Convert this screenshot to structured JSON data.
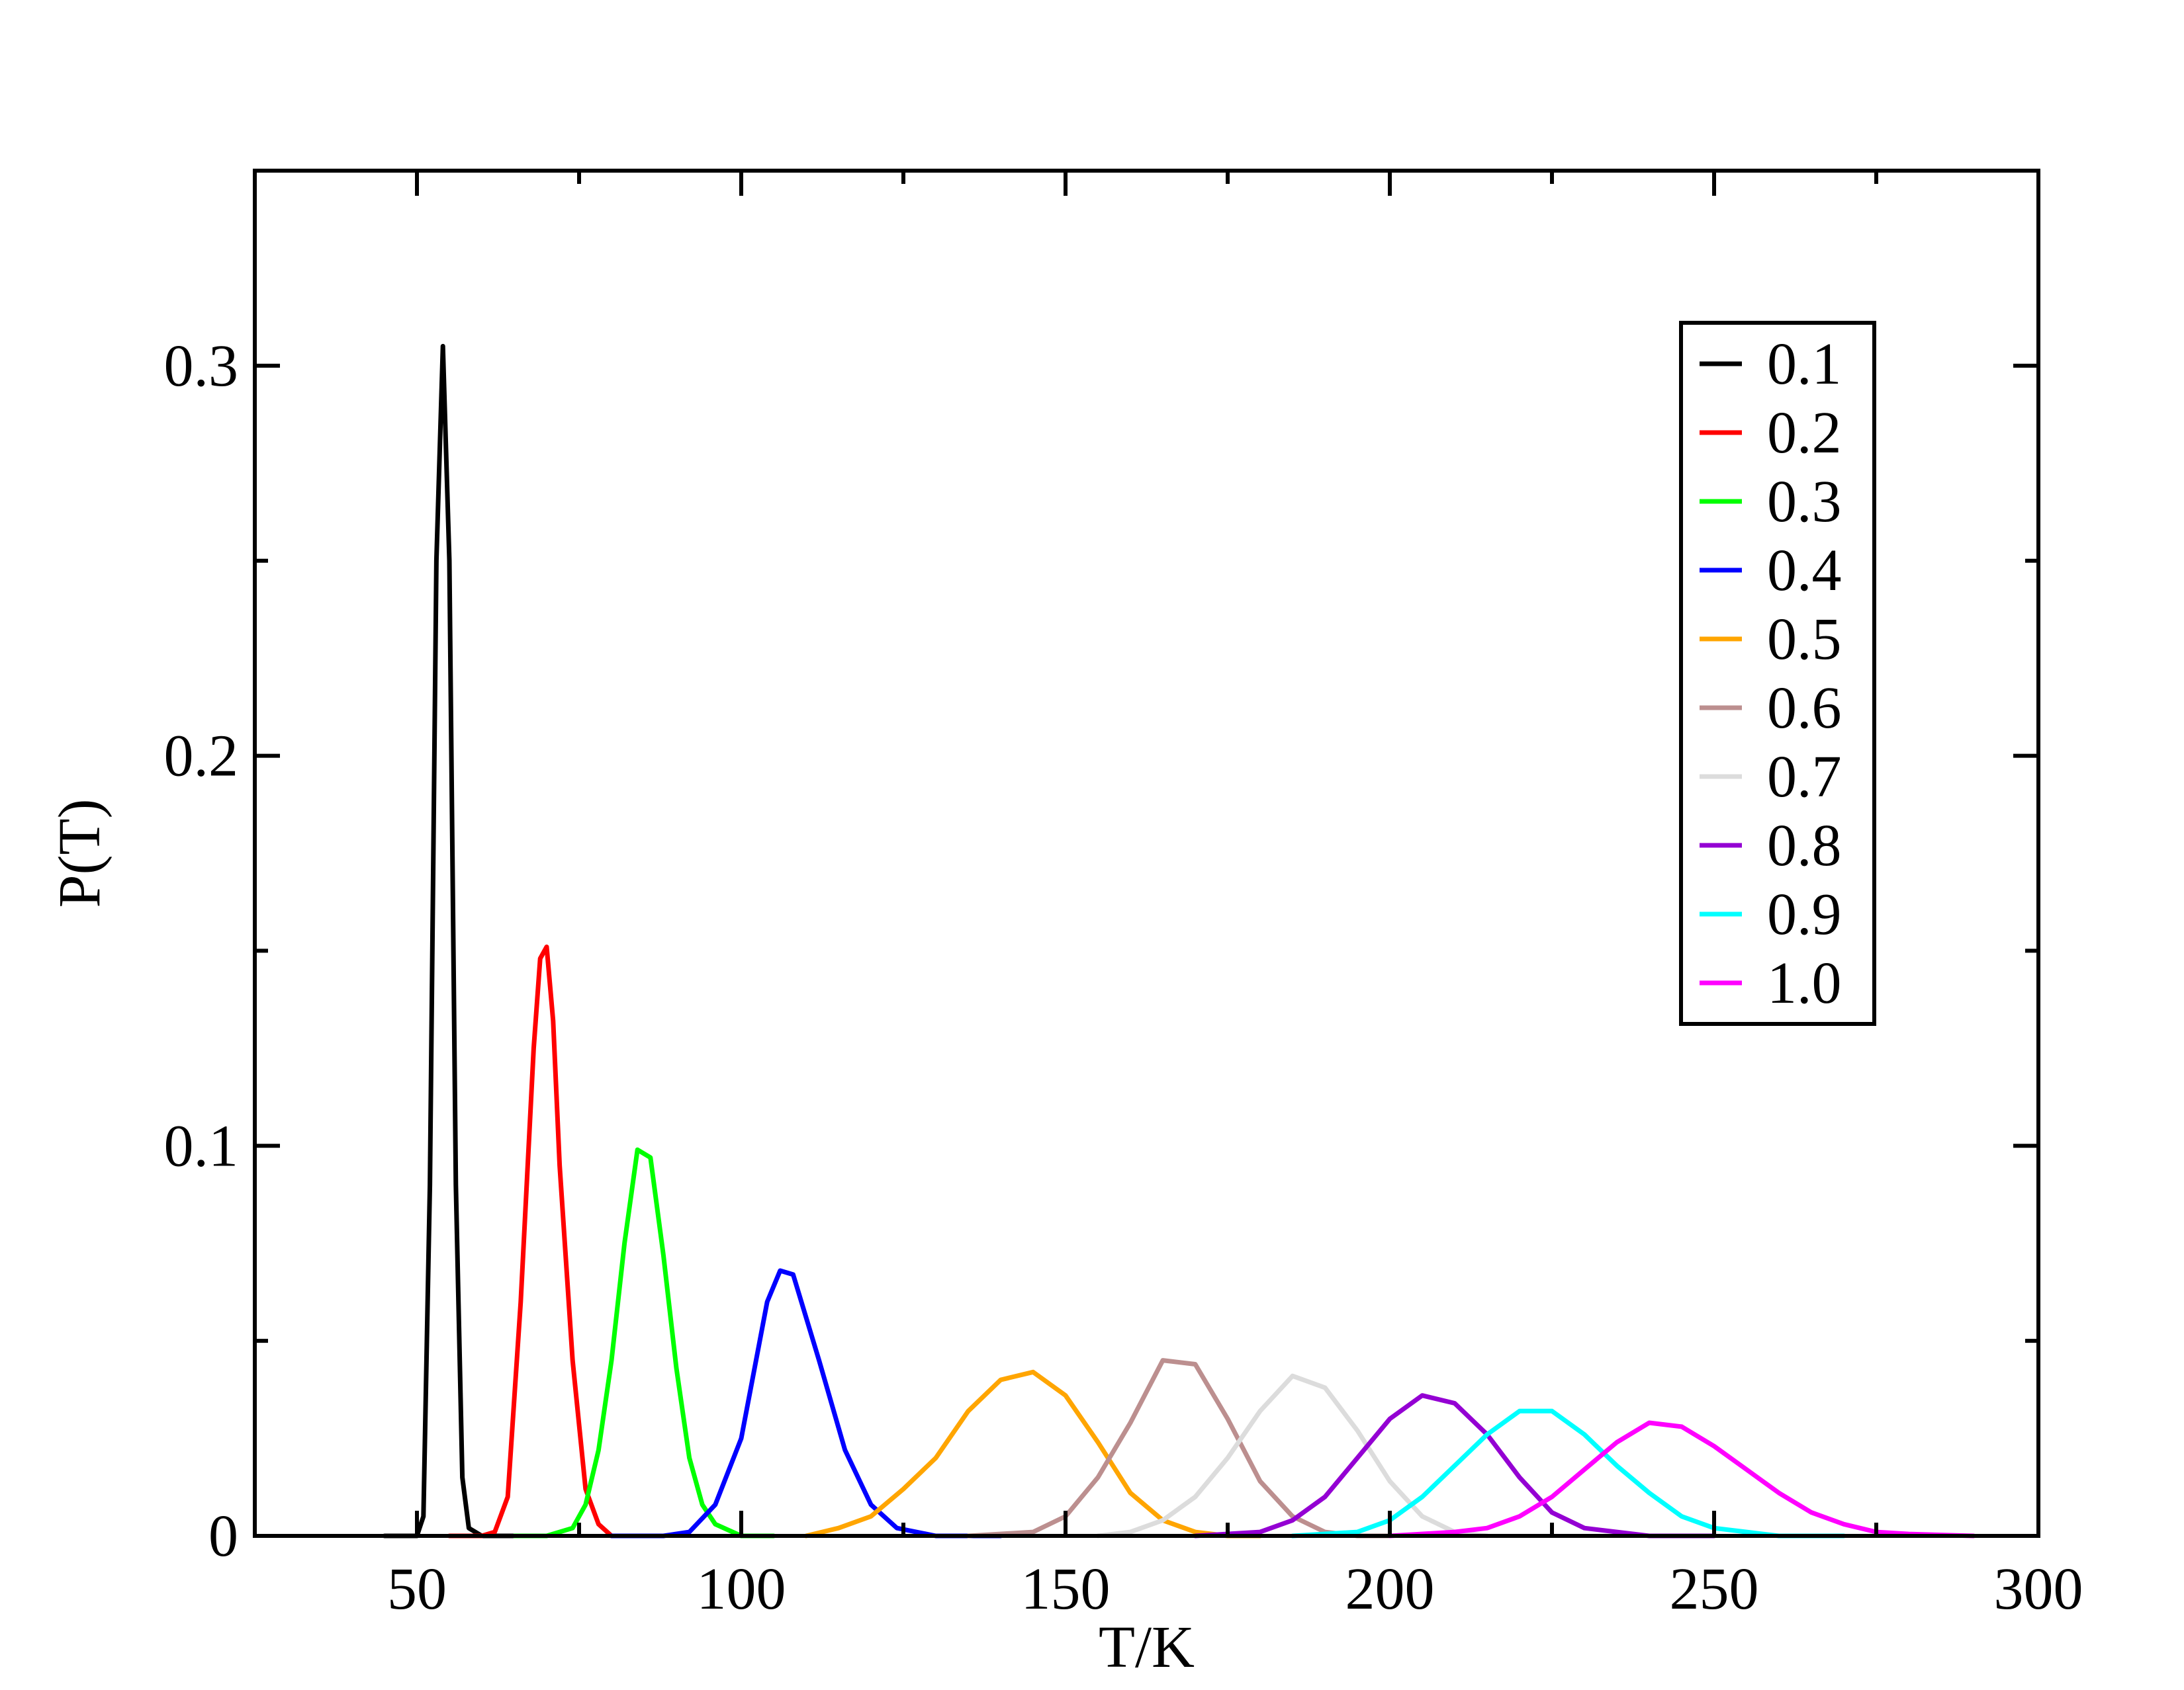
{
  "chart_data": {
    "type": "line",
    "title": "",
    "xlabel": "T/K",
    "ylabel": "P(T)",
    "xlim": [
      25,
      300
    ],
    "ylim": [
      0,
      0.35
    ],
    "x_ticks": [
      {
        "value": 50,
        "label": "50"
      },
      {
        "value": 100,
        "label": "100"
      },
      {
        "value": 150,
        "label": "150"
      },
      {
        "value": 200,
        "label": "200"
      },
      {
        "value": 250,
        "label": "250"
      },
      {
        "value": 300,
        "label": "300"
      }
    ],
    "x_minor_ticks": [
      75,
      125,
      175,
      225,
      275
    ],
    "y_ticks": [
      {
        "value": 0,
        "label": "0"
      },
      {
        "value": 0.1,
        "label": "0.1"
      },
      {
        "value": 0.2,
        "label": "0.2"
      },
      {
        "value": 0.3,
        "label": "0.3"
      }
    ],
    "y_minor_ticks": [
      0.05,
      0.15,
      0.25
    ],
    "grid": false,
    "legend_position": "top-right",
    "series": [
      {
        "name": "0.1",
        "color": "#000000",
        "x": [
          45,
          50,
          51,
          52,
          53,
          54,
          55,
          56,
          57,
          58,
          60,
          65
        ],
        "y": [
          0,
          0,
          0.005,
          0.09,
          0.25,
          0.305,
          0.25,
          0.09,
          0.015,
          0.002,
          0,
          0
        ]
      },
      {
        "name": "0.2",
        "color": "#ff0000",
        "x": [
          55,
          60,
          62,
          64,
          66,
          68,
          69,
          70,
          71,
          72,
          74,
          76,
          78,
          80,
          85
        ],
        "y": [
          0,
          0,
          0.001,
          0.01,
          0.06,
          0.125,
          0.148,
          0.151,
          0.132,
          0.095,
          0.045,
          0.012,
          0.003,
          0,
          0
        ]
      },
      {
        "name": "0.3",
        "color": "#00ff00",
        "x": [
          65,
          70,
          74,
          76,
          78,
          80,
          82,
          84,
          86,
          88,
          90,
          92,
          94,
          96,
          100,
          105
        ],
        "y": [
          0,
          0,
          0.002,
          0.008,
          0.022,
          0.045,
          0.075,
          0.099,
          0.097,
          0.072,
          0.043,
          0.02,
          0.008,
          0.003,
          0,
          0
        ]
      },
      {
        "name": "0.4",
        "color": "#0000ff",
        "x": [
          80,
          88,
          92,
          96,
          100,
          104,
          106,
          108,
          112,
          116,
          120,
          124,
          130,
          140
        ],
        "y": [
          0,
          0,
          0.001,
          0.008,
          0.025,
          0.06,
          0.068,
          0.067,
          0.045,
          0.022,
          0.008,
          0.002,
          0,
          0
        ]
      },
      {
        "name": "0.5",
        "color": "#ffa500",
        "x": [
          110,
          115,
          120,
          125,
          130,
          135,
          140,
          145,
          150,
          155,
          160,
          165,
          170,
          175,
          180
        ],
        "y": [
          0,
          0.002,
          0.005,
          0.012,
          0.02,
          0.032,
          0.04,
          0.042,
          0.036,
          0.024,
          0.011,
          0.004,
          0.001,
          0,
          0
        ]
      },
      {
        "name": "0.6",
        "color": "#bc8f8f",
        "x": [
          135,
          145,
          150,
          155,
          160,
          165,
          170,
          175,
          180,
          185,
          190,
          195,
          200
        ],
        "y": [
          0,
          0.001,
          0.005,
          0.015,
          0.029,
          0.045,
          0.044,
          0.03,
          0.014,
          0.005,
          0.001,
          0,
          0
        ]
      },
      {
        "name": "0.7",
        "color": "#dcdcdc",
        "x": [
          155,
          160,
          165,
          170,
          175,
          180,
          185,
          190,
          195,
          200,
          205,
          210,
          215
        ],
        "y": [
          0,
          0.001,
          0.004,
          0.01,
          0.02,
          0.032,
          0.041,
          0.038,
          0.027,
          0.014,
          0.005,
          0.001,
          0
        ]
      },
      {
        "name": "0.8",
        "color": "#9400d3",
        "x": [
          170,
          180,
          185,
          190,
          195,
          200,
          205,
          210,
          215,
          220,
          225,
          230,
          235,
          240,
          250
        ],
        "y": [
          0,
          0.001,
          0.004,
          0.01,
          0.02,
          0.03,
          0.036,
          0.034,
          0.026,
          0.015,
          0.006,
          0.002,
          0.001,
          0,
          0
        ]
      },
      {
        "name": "0.9",
        "color": "#00ffff",
        "x": [
          185,
          195,
          200,
          205,
          210,
          215,
          220,
          225,
          230,
          235,
          240,
          245,
          250,
          255,
          260,
          270
        ],
        "y": [
          0,
          0.001,
          0.004,
          0.01,
          0.018,
          0.026,
          0.032,
          0.032,
          0.026,
          0.018,
          0.011,
          0.005,
          0.002,
          0.001,
          0,
          0
        ]
      },
      {
        "name": "1.0",
        "color": "#ff00ff",
        "x": [
          200,
          210,
          215,
          220,
          225,
          230,
          235,
          240,
          245,
          250,
          255,
          260,
          265,
          270,
          275,
          280,
          290
        ],
        "y": [
          0,
          0.001,
          0.002,
          0.005,
          0.01,
          0.017,
          0.024,
          0.029,
          0.028,
          0.023,
          0.017,
          0.011,
          0.006,
          0.003,
          0.001,
          0.0005,
          0
        ]
      }
    ]
  }
}
